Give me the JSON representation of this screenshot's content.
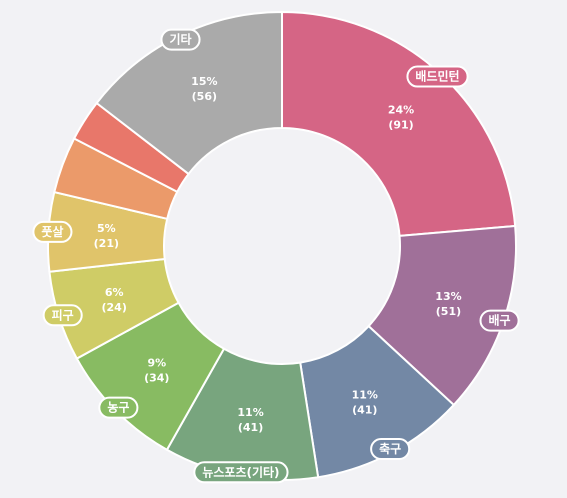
{
  "chart_data": {
    "type": "pie",
    "donut": true,
    "categories": [
      "배드민턴",
      "배구",
      "축구",
      "뉴스포츠(기타)",
      "농구",
      "피구",
      "풋살",
      "",
      "",
      "기타"
    ],
    "values": [
      91,
      51,
      41,
      41,
      34,
      24,
      21,
      15,
      11,
      56
    ],
    "percent_labels": [
      "24%",
      "13%",
      "11%",
      "11%",
      "9%",
      "6%",
      "5%",
      "",
      "",
      "15%"
    ],
    "value_labels": [
      "(91)",
      "(51)",
      "(41)",
      "(41)",
      "(34)",
      "(24)",
      "(21)",
      "",
      "",
      "(56)"
    ],
    "colors": [
      "#d56585",
      "#a07099",
      "#7388a5",
      "#78a57e",
      "#88bb62",
      "#cfcc66",
      "#e0c46a",
      "#eb9a6a",
      "#e8776a",
      "#aaaaaa"
    ]
  }
}
